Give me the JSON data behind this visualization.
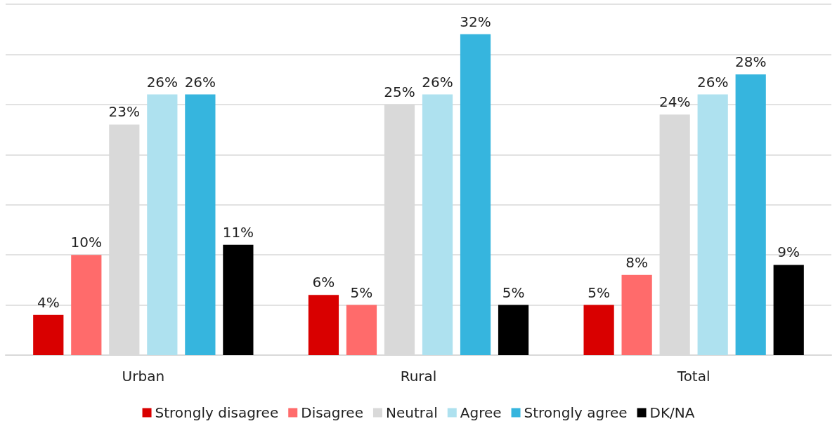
{
  "chart_data": {
    "type": "bar",
    "categories": [
      "Urban",
      "Rural",
      "Total"
    ],
    "series": [
      {
        "name": "Strongly disagree",
        "color": "#d90000",
        "values": [
          4,
          6,
          5
        ],
        "value_labels": [
          "4%",
          "6%",
          "5%"
        ]
      },
      {
        "name": "Disagree",
        "color": "#ff6b6b",
        "values": [
          10,
          5,
          8
        ],
        "value_labels": [
          "10%",
          "5%",
          "8%"
        ]
      },
      {
        "name": "Neutral",
        "color": "#d9d9d9",
        "values": [
          23,
          25,
          24
        ],
        "value_labels": [
          "23%",
          "25%",
          "24%"
        ]
      },
      {
        "name": "Agree",
        "color": "#aee1ef",
        "values": [
          26,
          26,
          26
        ],
        "value_labels": [
          "26%",
          "26%",
          "26%"
        ]
      },
      {
        "name": "Strongly agree",
        "color": "#36b5de",
        "values": [
          26,
          32,
          28
        ],
        "value_labels": [
          "26%",
          "32%",
          "28%"
        ]
      },
      {
        "name": "DK/NA",
        "color": "#000000",
        "values": [
          11,
          5,
          9
        ],
        "value_labels": [
          "11%",
          "5%",
          "9%"
        ]
      }
    ],
    "ylim": [
      0,
      35
    ],
    "yticks": [
      {
        "value": 0,
        "label": null
      },
      {
        "value": 5,
        "label": null
      },
      {
        "value": 10,
        "label": null
      },
      {
        "value": 15,
        "label": null
      },
      {
        "value": 20,
        "label": null
      },
      {
        "value": 25,
        "label": null
      },
      {
        "value": 30,
        "label": null
      },
      {
        "value": 35,
        "label": null
      }
    ],
    "grid": "y",
    "legend": "bottom",
    "tick_labels": "x"
  }
}
